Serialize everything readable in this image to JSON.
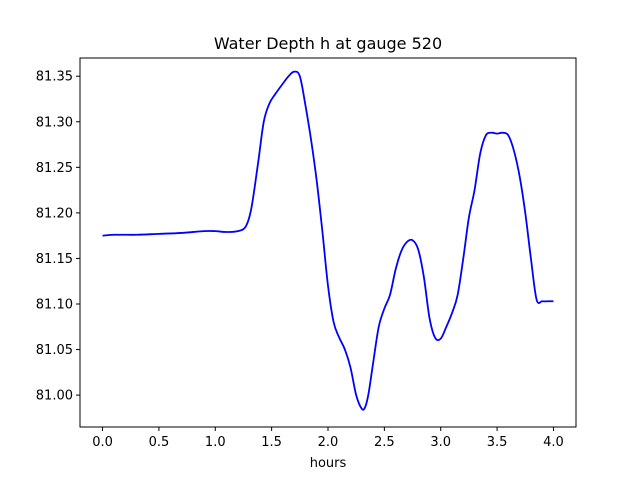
{
  "chart_data": {
    "type": "line",
    "title": "Water Depth h at gauge 520",
    "xlabel": "hours",
    "ylabel": "",
    "xlim": [
      -0.2,
      4.2
    ],
    "ylim": [
      80.965,
      81.37
    ],
    "grid": false,
    "x_ticks": [
      0.0,
      0.5,
      1.0,
      1.5,
      2.0,
      2.5,
      3.0,
      3.5,
      4.0
    ],
    "x_tick_labels": [
      "0.0",
      "0.5",
      "1.0",
      "1.5",
      "2.0",
      "2.5",
      "3.0",
      "3.5",
      "4.0"
    ],
    "y_ticks": [
      81.0,
      81.05,
      81.1,
      81.15,
      81.2,
      81.25,
      81.3,
      81.35
    ],
    "y_tick_labels": [
      "81.00",
      "81.05",
      "81.10",
      "81.15",
      "81.20",
      "81.25",
      "81.30",
      "81.35"
    ],
    "series": [
      {
        "color": "#0000ff",
        "x": [
          0.0,
          0.1,
          0.3,
          0.5,
          0.7,
          0.9,
          1.0,
          1.1,
          1.2,
          1.27,
          1.32,
          1.38,
          1.43,
          1.48,
          1.53,
          1.6,
          1.65,
          1.7,
          1.75,
          1.8,
          1.85,
          1.9,
          1.95,
          2.0,
          2.05,
          2.1,
          2.15,
          2.2,
          2.25,
          2.3,
          2.33,
          2.36,
          2.4,
          2.45,
          2.5,
          2.55,
          2.6,
          2.65,
          2.7,
          2.75,
          2.8,
          2.85,
          2.9,
          2.95,
          3.0,
          3.05,
          3.1,
          3.15,
          3.2,
          3.25,
          3.3,
          3.35,
          3.4,
          3.45,
          3.5,
          3.55,
          3.6,
          3.65,
          3.7,
          3.75,
          3.8,
          3.85,
          3.9,
          3.95,
          4.0
        ],
        "y": [
          81.175,
          81.176,
          81.176,
          81.177,
          81.178,
          81.18,
          81.18,
          81.179,
          81.18,
          81.185,
          81.205,
          81.255,
          81.3,
          81.32,
          81.33,
          81.342,
          81.35,
          81.355,
          81.35,
          81.318,
          81.28,
          81.235,
          81.18,
          81.12,
          81.08,
          81.063,
          81.05,
          81.03,
          81.0,
          80.985,
          80.987,
          81.002,
          81.035,
          81.075,
          81.095,
          81.11,
          81.138,
          81.158,
          81.168,
          81.17,
          81.16,
          81.13,
          81.085,
          81.063,
          81.062,
          81.075,
          81.09,
          81.11,
          81.15,
          81.195,
          81.225,
          81.265,
          81.285,
          81.288,
          81.287,
          81.288,
          81.285,
          81.268,
          81.24,
          81.2,
          81.15,
          81.105,
          81.103,
          81.103,
          81.103
        ]
      }
    ]
  }
}
